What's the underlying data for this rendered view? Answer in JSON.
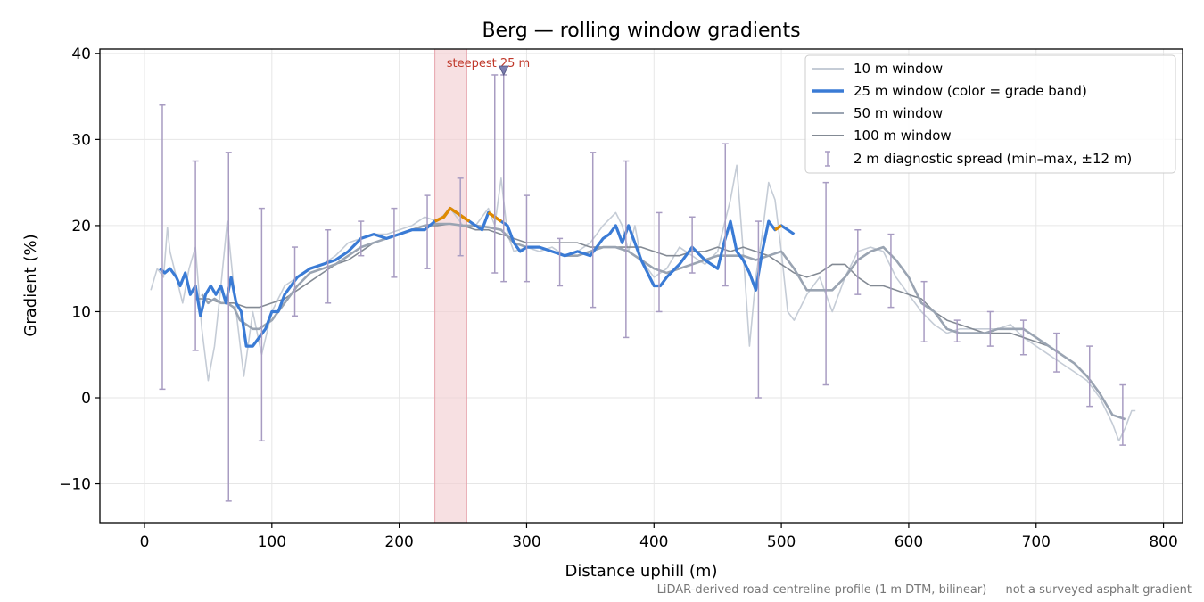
{
  "chart_data": {
    "type": "line",
    "title": "Berg — rolling window gradients",
    "xlabel": "Distance uphill (m)",
    "ylabel": "Gradient (%)",
    "xlim": [
      -35,
      815
    ],
    "ylim": [
      -14.5,
      40.5
    ],
    "xticks": [
      0,
      100,
      200,
      300,
      400,
      500,
      600,
      700,
      800
    ],
    "yticks": [
      -10,
      0,
      10,
      20,
      30,
      40
    ],
    "xtick_labels": [
      "0",
      "100",
      "200",
      "300",
      "400",
      "500",
      "600",
      "700",
      "800"
    ],
    "ytick_labels": [
      "−10",
      "0",
      "10",
      "20",
      "30",
      "40"
    ],
    "grid": true,
    "legend_position": "top-right",
    "footnote": "LiDAR-derived road-centreline profile (1 m DTM, bilinear) — not a surveyed asphalt gradient",
    "highlight_band": {
      "x_start": 228,
      "x_end": 253,
      "label": "steepest 25 m",
      "marker_x": 282,
      "marker_y": 38
    },
    "colors": {
      "w10": "#c5ccd6",
      "w25": "#3a7bd5",
      "w25_steep": "#e08a00",
      "w50": "#9aa4b2",
      "w100": "#838a94",
      "errorbar": "#a89cc2",
      "band": "#f2cfd3",
      "annotation": "#c0392b"
    },
    "series": [
      {
        "name": "10 m window",
        "color": "#c5ccd6",
        "x": [
          5,
          10,
          15,
          18,
          20,
          25,
          30,
          35,
          40,
          45,
          50,
          55,
          60,
          65,
          68,
          72,
          78,
          85,
          92,
          100,
          110,
          120,
          130,
          140,
          150,
          160,
          170,
          180,
          190,
          200,
          210,
          220,
          230,
          240,
          250,
          260,
          270,
          275,
          280,
          285,
          290,
          300,
          310,
          320,
          330,
          340,
          350,
          360,
          370,
          375,
          380,
          385,
          390,
          400,
          410,
          420,
          430,
          440,
          450,
          455,
          460,
          465,
          470,
          475,
          480,
          485,
          490,
          495,
          500,
          505,
          510,
          520,
          530,
          540,
          550,
          560,
          570,
          580,
          590,
          600,
          610,
          620,
          630,
          640,
          650,
          660,
          670,
          680,
          690,
          700,
          710,
          720,
          730,
          740,
          750,
          760,
          765,
          770,
          775,
          778
        ],
        "y": [
          12.5,
          15,
          14,
          19.8,
          17,
          14,
          11,
          15,
          17.5,
          8,
          2,
          6,
          13,
          20.5,
          16,
          10,
          2.5,
          10,
          5,
          10,
          13,
          14,
          15,
          15.5,
          16.5,
          18,
          18.5,
          19,
          19,
          19.5,
          20,
          21,
          20.5,
          22,
          20,
          20,
          22,
          20,
          25.5,
          19,
          17,
          17.5,
          17,
          17.5,
          16.5,
          17,
          18,
          20,
          21.5,
          20,
          17,
          20,
          16,
          14,
          15,
          17.5,
          16.5,
          15.5,
          17,
          20,
          23,
          27,
          17,
          6,
          14,
          19,
          25,
          23,
          17,
          10,
          9,
          12,
          14,
          10,
          14,
          17,
          17.5,
          17,
          14,
          12,
          10,
          8.5,
          7.5,
          8,
          8,
          8,
          8,
          8.5,
          7,
          6,
          5,
          4,
          3,
          2,
          0,
          -3,
          -5,
          -3.5,
          -1.5,
          -1.5
        ]
      },
      {
        "name": "25 m window (color = grade band)",
        "color": "#3a7bd5",
        "steep_color": "#e08a00",
        "x": [
          12,
          16,
          20,
          25,
          28,
          32,
          36,
          40,
          44,
          48,
          52,
          56,
          60,
          64,
          68,
          72,
          76,
          80,
          85,
          90,
          95,
          100,
          105,
          110,
          120,
          130,
          140,
          150,
          160,
          170,
          180,
          190,
          200,
          210,
          220,
          228,
          235,
          240,
          245,
          250,
          255,
          260,
          265,
          270,
          275,
          280,
          285,
          290,
          295,
          300,
          310,
          320,
          330,
          340,
          350,
          360,
          365,
          370,
          375,
          380,
          390,
          400,
          405,
          410,
          420,
          430,
          440,
          450,
          455,
          460,
          465,
          470,
          475,
          480,
          485,
          490,
          495,
          500,
          505,
          510
        ],
        "y": [
          15,
          14.5,
          15,
          14,
          13,
          14.5,
          12,
          13,
          9.5,
          12,
          13,
          12,
          13,
          11,
          14,
          11,
          10,
          6,
          6,
          7,
          8,
          10,
          10,
          12,
          14,
          15,
          15.5,
          16,
          17,
          18.5,
          19,
          18.5,
          19,
          19.5,
          19.5,
          20.5,
          21,
          22,
          21.5,
          21,
          20.5,
          20,
          19.5,
          21.5,
          21,
          20.5,
          20,
          18,
          17,
          17.5,
          17.5,
          17,
          16.5,
          17,
          16.5,
          18.5,
          19,
          20,
          18,
          20,
          16,
          13,
          13,
          14,
          15.5,
          17.5,
          16,
          15,
          18,
          20.5,
          17,
          16,
          14.5,
          12.5,
          17,
          20.5,
          19.5,
          20,
          19.5,
          19
        ],
        "steep_ranges": [
          [
            228,
            255
          ],
          [
            268,
            283
          ],
          [
            456,
            462
          ],
          [
            493,
            500
          ]
        ]
      },
      {
        "name": "50 m window",
        "color": "#9aa4b2",
        "x": [
          45,
          50,
          55,
          60,
          65,
          70,
          75,
          80,
          85,
          90,
          100,
          110,
          120,
          130,
          140,
          150,
          160,
          170,
          180,
          190,
          200,
          210,
          220,
          230,
          240,
          250,
          260,
          270,
          280,
          290,
          300,
          310,
          320,
          330,
          340,
          350,
          360,
          370,
          380,
          390,
          400,
          410,
          420,
          430,
          440,
          450,
          460,
          470,
          480,
          490,
          500,
          510,
          520,
          530,
          540,
          550,
          560,
          570,
          580,
          590,
          600,
          610,
          620,
          630,
          640,
          650,
          660,
          670,
          680,
          690,
          700,
          710,
          720,
          730,
          740,
          750,
          760,
          770
        ],
        "y": [
          12,
          11,
          11.5,
          11,
          11,
          10.5,
          9,
          8.5,
          8,
          8,
          9,
          11,
          13,
          14.5,
          15,
          15.5,
          16.5,
          17.5,
          18,
          18.5,
          19,
          19.5,
          20,
          20.2,
          20.2,
          20,
          20,
          19.8,
          19.5,
          18,
          17.5,
          17.5,
          17,
          16.5,
          16.5,
          17,
          17.5,
          17.5,
          17,
          16,
          15,
          14.5,
          15,
          15.5,
          16,
          16.5,
          16.5,
          16.5,
          16,
          16.5,
          17,
          15,
          12.5,
          12.5,
          12.5,
          14,
          16,
          17,
          17.5,
          16,
          14,
          11,
          10,
          8,
          7.5,
          7.5,
          7.5,
          8,
          8,
          8,
          7,
          6,
          5,
          4,
          2.5,
          0.5,
          -2,
          -2.5
        ]
      },
      {
        "name": "100 m window",
        "color": "#838a94",
        "x": [
          40,
          50,
          60,
          70,
          80,
          90,
          100,
          110,
          120,
          130,
          140,
          150,
          160,
          170,
          180,
          190,
          200,
          210,
          220,
          230,
          240,
          250,
          260,
          270,
          280,
          290,
          300,
          310,
          320,
          330,
          340,
          350,
          360,
          370,
          380,
          390,
          400,
          410,
          420,
          430,
          440,
          450,
          460,
          470,
          480,
          490,
          500,
          510,
          520,
          530,
          540,
          550,
          560,
          570,
          580,
          590,
          600,
          610,
          620,
          630,
          640,
          650,
          660,
          670,
          680,
          690,
          700,
          710,
          720
        ],
        "y": [
          11.5,
          11.5,
          11,
          11,
          10.5,
          10.5,
          11,
          11.5,
          12.5,
          13.5,
          14.5,
          15.5,
          16,
          17,
          18,
          18.5,
          19,
          19.5,
          20,
          20,
          20.2,
          20,
          19.5,
          19.5,
          19,
          18.5,
          18,
          18,
          18,
          18,
          18,
          17.5,
          17.5,
          17.5,
          17.5,
          17.5,
          17,
          16.5,
          16.5,
          17,
          17,
          17.5,
          17,
          17.5,
          17,
          16.5,
          15.5,
          14.5,
          14,
          14.5,
          15.5,
          15.5,
          14,
          13,
          13,
          12.5,
          12,
          11.5,
          10,
          9,
          8.5,
          8,
          7.5,
          7.5,
          7.5,
          7,
          6.5,
          6,
          5
        ]
      }
    ],
    "errorbar_series": {
      "name": "2 m diagnostic spread (min–max, ±12 m)",
      "color": "#a89cc2",
      "x": [
        14,
        40,
        66,
        92,
        118,
        144,
        170,
        196,
        222,
        248,
        275,
        282,
        300,
        326,
        352,
        378,
        404,
        430,
        456,
        482,
        535,
        560,
        586,
        612,
        638,
        664,
        690,
        716,
        742,
        768
      ],
      "lower": [
        1,
        5.5,
        -12,
        -5,
        9.5,
        11,
        16.5,
        14,
        15,
        16.5,
        14.5,
        13.5,
        13.5,
        13,
        10.5,
        7,
        10,
        14.5,
        13,
        0,
        1.5,
        12,
        10.5,
        6.5,
        6.5,
        6,
        5,
        3,
        -1,
        -5.5
      ],
      "upper": [
        34,
        27.5,
        28.5,
        22,
        17.5,
        19.5,
        20.5,
        22,
        23.5,
        25.5,
        37.5,
        37.5,
        23.5,
        18.5,
        28.5,
        27.5,
        21.5,
        21,
        29.5,
        20.5,
        25,
        19.5,
        19,
        13.5,
        9,
        10,
        9,
        7.5,
        6,
        1.5
      ]
    }
  }
}
